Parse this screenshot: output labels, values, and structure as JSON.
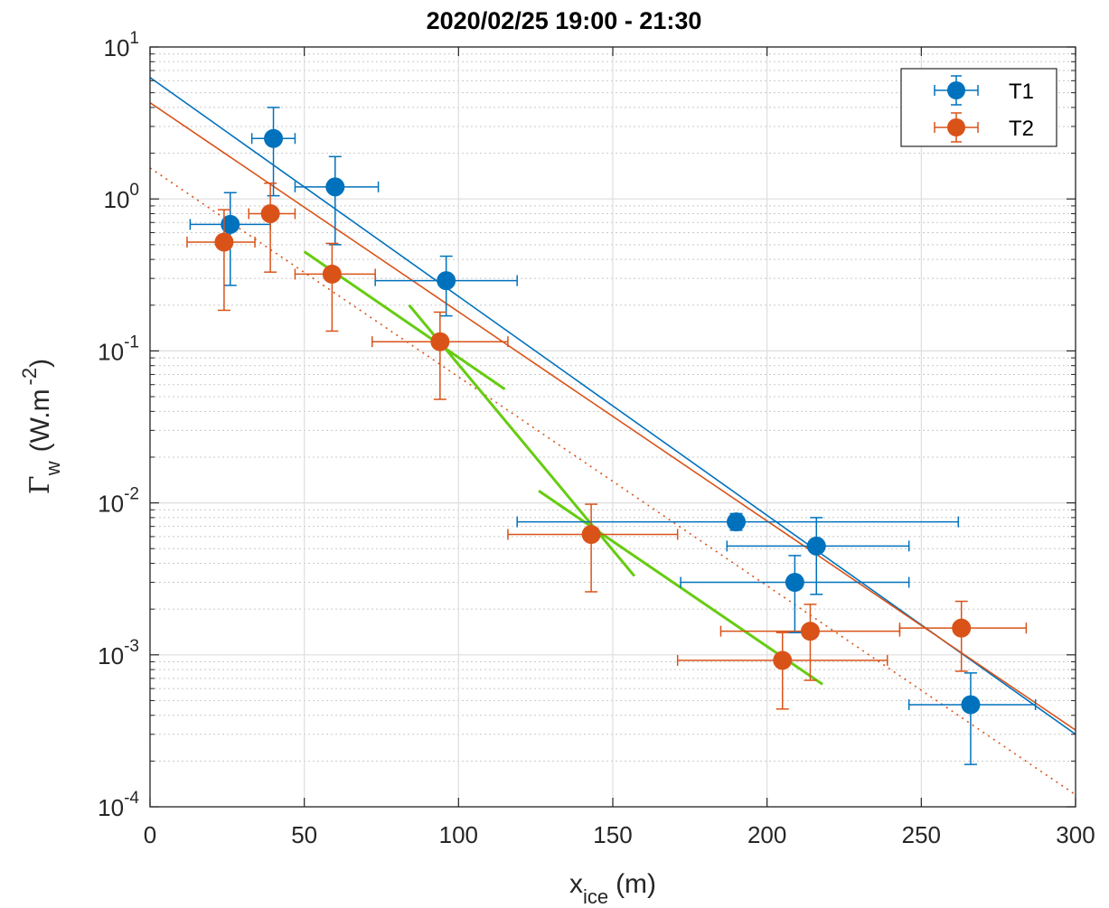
{
  "chart_data": {
    "type": "scatter",
    "title": "2020/02/25 19:00 - 21:30",
    "xlabel": {
      "main": "x",
      "sub": "ice",
      "unit": "(m)"
    },
    "ylabel": {
      "symbol": "Γ",
      "sub": "w",
      "unit": "(W.m",
      "sup": "-2",
      "close": ")"
    },
    "xlim": [
      0,
      300
    ],
    "ylim": [
      0.0001,
      10
    ],
    "yscale": "log",
    "grid": true,
    "minor_grid": true,
    "legend_position": "top-right",
    "xticks": [
      "0",
      "50",
      "100",
      "150",
      "200",
      "250",
      "300"
    ],
    "yticks": [
      {
        "base": "10",
        "exp": "1"
      },
      {
        "base": "10",
        "exp": "0"
      },
      {
        "base": "10",
        "exp": "-1"
      },
      {
        "base": "10",
        "exp": "-2"
      },
      {
        "base": "10",
        "exp": "-3"
      },
      {
        "base": "10",
        "exp": "-4"
      }
    ],
    "series": [
      {
        "name": "T1",
        "color": "#0072BD",
        "points": [
          {
            "x": 26,
            "y": 0.68,
            "xerr": [
              13,
              39
            ],
            "yerr": [
              0.27,
              1.1
            ]
          },
          {
            "x": 40,
            "y": 2.5,
            "xerr": [
              33,
              47
            ],
            "yerr": [
              1.05,
              4.0
            ]
          },
          {
            "x": 60,
            "y": 1.2,
            "xerr": [
              47,
              74
            ],
            "yerr": [
              0.5,
              1.9
            ]
          },
          {
            "x": 96,
            "y": 0.29,
            "xerr": [
              73,
              119
            ],
            "yerr": [
              0.17,
              0.42
            ]
          },
          {
            "x": 190,
            "y": 0.0075,
            "xerr": [
              119,
              262
            ],
            "yerr": [
              0.0066,
              0.0085
            ]
          },
          {
            "x": 216,
            "y": 0.0052,
            "xerr": [
              187,
              246
            ],
            "yerr": [
              0.0025,
              0.008
            ]
          },
          {
            "x": 209,
            "y": 0.003,
            "xerr": [
              172,
              246
            ],
            "yerr": [
              0.0014,
              0.0045
            ]
          },
          {
            "x": 266,
            "y": 0.00047,
            "xerr": [
              246,
              287
            ],
            "yerr": [
              0.00019,
              0.00076
            ]
          }
        ]
      },
      {
        "name": "T2",
        "color": "#D95319",
        "points": [
          {
            "x": 24,
            "y": 0.52,
            "xerr": [
              12,
              34
            ],
            "yerr": [
              0.185,
              0.85
            ]
          },
          {
            "x": 39,
            "y": 0.8,
            "xerr": [
              32,
              47
            ],
            "yerr": [
              0.33,
              1.27
            ]
          },
          {
            "x": 59,
            "y": 0.32,
            "xerr": [
              47,
              73
            ],
            "yerr": [
              0.135,
              0.51
            ]
          },
          {
            "x": 94,
            "y": 0.115,
            "xerr": [
              72,
              116
            ],
            "yerr": [
              0.048,
              0.18
            ]
          },
          {
            "x": 143,
            "y": 0.0062,
            "xerr": [
              116,
              171
            ],
            "yerr": [
              0.0026,
              0.0098
            ]
          },
          {
            "x": 214,
            "y": 0.00143,
            "xerr": [
              185,
              243
            ],
            "yerr": [
              0.00068,
              0.00215
            ]
          },
          {
            "x": 205,
            "y": 0.00092,
            "xerr": [
              171,
              239
            ],
            "yerr": [
              0.00044,
              0.0014
            ]
          },
          {
            "x": 263,
            "y": 0.0015,
            "xerr": [
              243,
              284
            ],
            "yerr": [
              0.00078,
              0.00225
            ]
          }
        ]
      }
    ],
    "fit_lines": [
      {
        "color": "#0072BD",
        "style": "solid",
        "x": [
          0,
          300
        ],
        "y": [
          6.3,
          0.0003
        ]
      },
      {
        "color": "#D95319",
        "style": "solid",
        "x": [
          0,
          300
        ],
        "y": [
          4.3,
          0.00032
        ]
      },
      {
        "color": "#D95319",
        "style": "dotted",
        "x": [
          0,
          300
        ],
        "y": [
          1.6,
          0.00012
        ]
      },
      {
        "color": "#66CC11",
        "style": "solid",
        "x": [
          50,
          115
        ],
        "y": [
          0.45,
          0.056
        ]
      },
      {
        "color": "#66CC11",
        "style": "solid",
        "x": [
          84,
          157
        ],
        "y": [
          0.2,
          0.0033
        ]
      },
      {
        "color": "#66CC11",
        "style": "solid",
        "x": [
          126,
          218
        ],
        "y": [
          0.012,
          0.00064
        ]
      }
    ]
  }
}
